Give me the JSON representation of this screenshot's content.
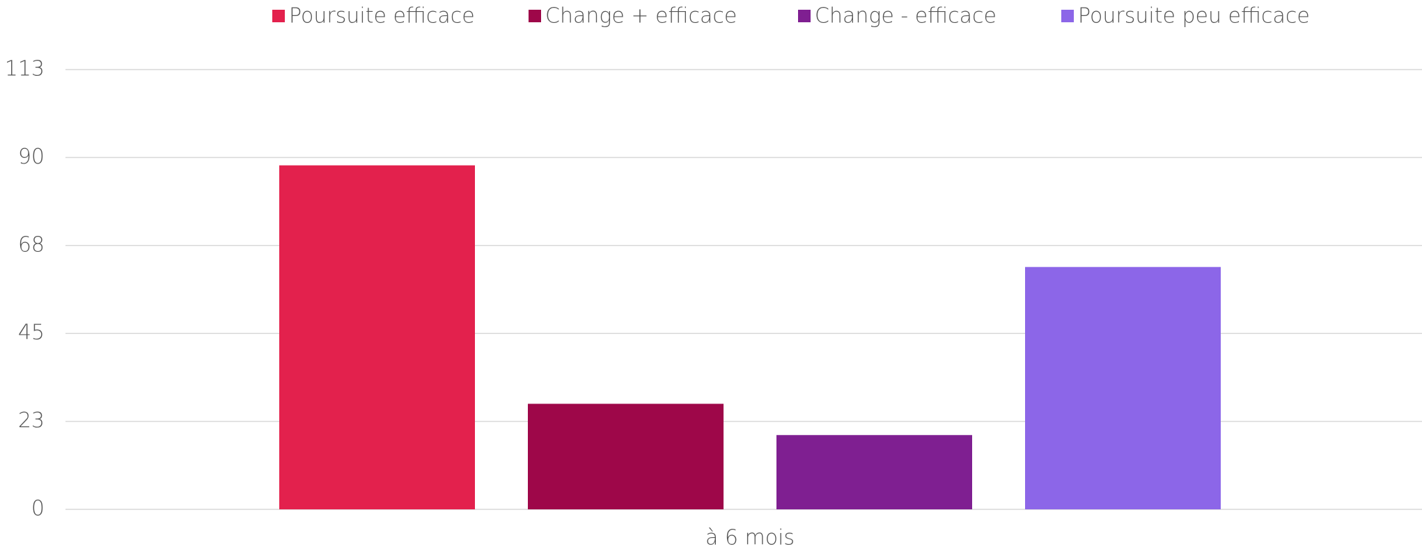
{
  "chart_data": {
    "type": "bar",
    "categories": [
      "à 6 mois"
    ],
    "series": [
      {
        "name": "Poursuite efficace",
        "color": "#e3214d",
        "values": [
          88
        ]
      },
      {
        "name": "Change + efficace",
        "color": "#9e0749",
        "values": [
          27
        ]
      },
      {
        "name": "Change - efficace",
        "color": "#7f1f91",
        "values": [
          19
        ]
      },
      {
        "name": "Poursuite peu efficace",
        "color": "#8c66e8",
        "values": [
          62
        ]
      }
    ],
    "ylim": [
      0,
      112.5
    ],
    "yticks": [
      0,
      {
        "value": 22.5,
        "label": "23"
      },
      45,
      {
        "value": 67.5,
        "label": "68"
      },
      90,
      {
        "value": 112.5,
        "label": "113"
      }
    ],
    "grid": true,
    "legend": "top"
  }
}
